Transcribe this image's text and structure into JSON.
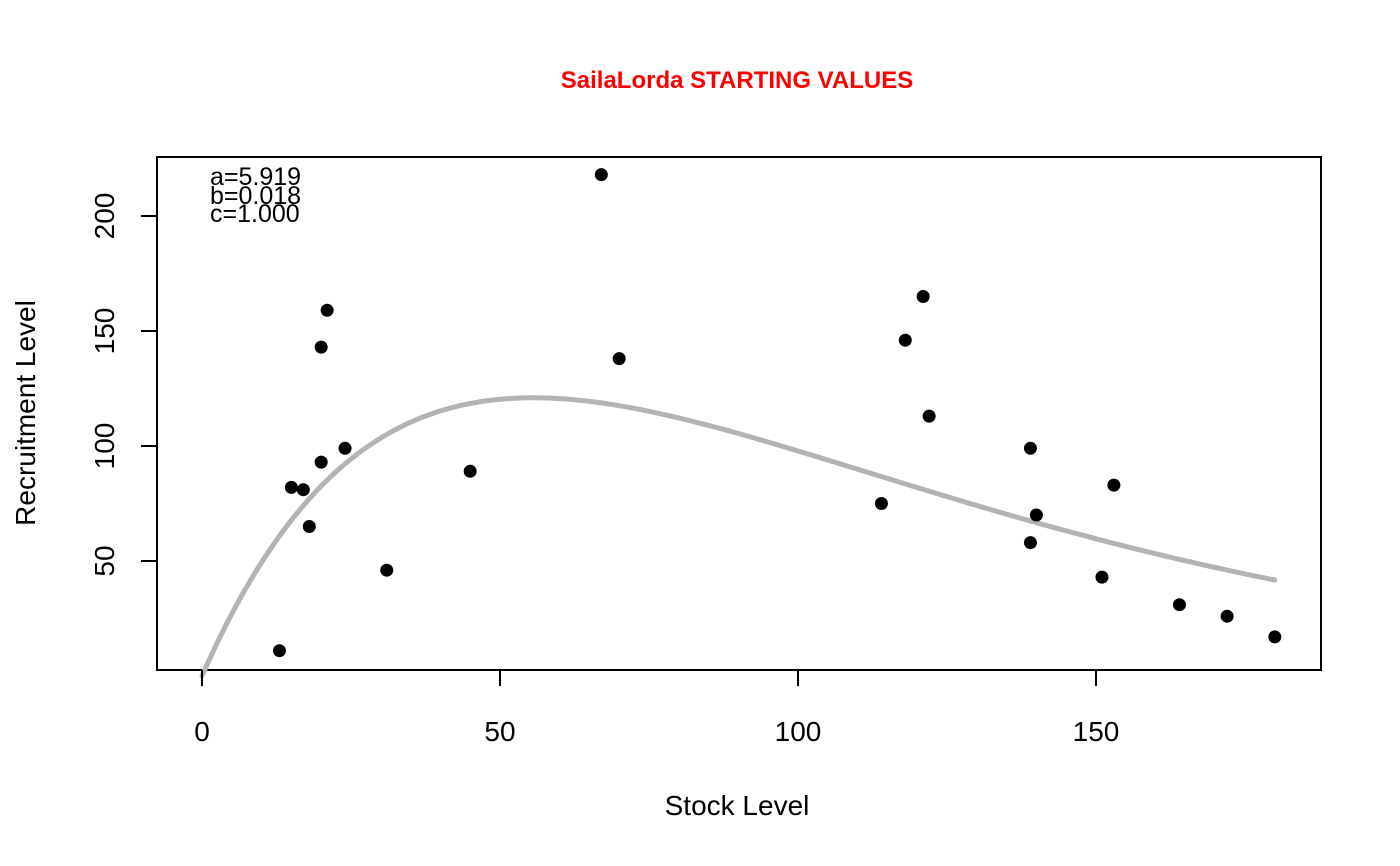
{
  "chart_data": {
    "type": "scatter",
    "title": "SailaLorda STARTING VALUES",
    "title_color": "#ff0000",
    "xlabel": "Stock Level",
    "ylabel": "Recruitment Level",
    "xlim": [
      0,
      180
    ],
    "ylim": [
      0,
      220
    ],
    "x_ticks": [
      0,
      50,
      100,
      150
    ],
    "x_tick_labels": [
      "0",
      "50",
      "100",
      "150"
    ],
    "y_ticks": [
      50,
      100,
      150,
      200
    ],
    "y_tick_labels": [
      "50",
      "100",
      "150",
      "200"
    ],
    "grid": false,
    "legend": "none",
    "point_color": "#000000",
    "curve_color": "#b3b3b3",
    "annotations": [
      "a=5.919",
      "b=0.018",
      "c=1.000"
    ],
    "parameters": {
      "a": 5.919,
      "b": 0.018,
      "c": 1.0
    },
    "curve_model": "R = a * S * exp(-b * S)",
    "points": [
      {
        "x": 13,
        "y": 11
      },
      {
        "x": 15,
        "y": 82
      },
      {
        "x": 17,
        "y": 81
      },
      {
        "x": 18,
        "y": 65
      },
      {
        "x": 20,
        "y": 143
      },
      {
        "x": 20,
        "y": 93
      },
      {
        "x": 21,
        "y": 159
      },
      {
        "x": 24,
        "y": 99
      },
      {
        "x": 31,
        "y": 46
      },
      {
        "x": 45,
        "y": 89
      },
      {
        "x": 67,
        "y": 218
      },
      {
        "x": 70,
        "y": 138
      },
      {
        "x": 114,
        "y": 75
      },
      {
        "x": 118,
        "y": 146
      },
      {
        "x": 121,
        "y": 165
      },
      {
        "x": 122,
        "y": 113
      },
      {
        "x": 139,
        "y": 99
      },
      {
        "x": 139,
        "y": 58
      },
      {
        "x": 140,
        "y": 70
      },
      {
        "x": 151,
        "y": 43
      },
      {
        "x": 153,
        "y": 83
      },
      {
        "x": 164,
        "y": 31
      },
      {
        "x": 172,
        "y": 26
      },
      {
        "x": 180,
        "y": 17
      }
    ]
  }
}
